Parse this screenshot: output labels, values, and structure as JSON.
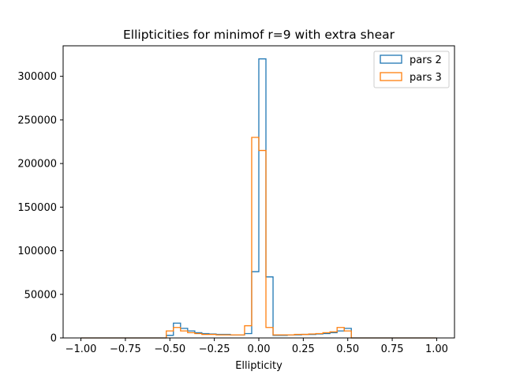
{
  "chart_data": {
    "type": "histogram-step",
    "title": "Ellipticities for minimof r=9 with extra shear",
    "xlabel": "Ellipticity",
    "ylabel": "",
    "xlim": [
      -1.1,
      1.1
    ],
    "ylim": [
      0,
      335000
    ],
    "xticks": [
      -1.0,
      -0.75,
      -0.5,
      -0.25,
      0.0,
      0.25,
      0.5,
      0.75,
      1.0
    ],
    "xtick_labels": [
      "−1.00",
      "−0.75",
      "−0.50",
      "−0.25",
      "0.00",
      "0.25",
      "0.50",
      "0.75",
      "1.00"
    ],
    "yticks": [
      0,
      50000,
      100000,
      150000,
      200000,
      250000,
      300000
    ],
    "ytick_labels": [
      "0",
      "50000",
      "100000",
      "150000",
      "200000",
      "250000",
      "300000"
    ],
    "bin_edges": [
      -1.0,
      -0.96,
      -0.92,
      -0.88,
      -0.84,
      -0.8,
      -0.76,
      -0.72,
      -0.68,
      -0.64,
      -0.6,
      -0.56,
      -0.52,
      -0.48,
      -0.44,
      -0.4,
      -0.36,
      -0.32,
      -0.28,
      -0.24,
      -0.2,
      -0.16,
      -0.12,
      -0.08,
      -0.04,
      0.0,
      0.04,
      0.08,
      0.12,
      0.16,
      0.2,
      0.24,
      0.28,
      0.32,
      0.36,
      0.4,
      0.44,
      0.48,
      0.52,
      0.56,
      0.6,
      0.64,
      0.68,
      0.72,
      0.76,
      0.8,
      0.84,
      0.88,
      0.92,
      0.96,
      1.0
    ],
    "series": [
      {
        "name": "pars 2",
        "color": "#1f77b4",
        "values": [
          0,
          0,
          0,
          0,
          0,
          0,
          0,
          0,
          0,
          0,
          0,
          0,
          3000,
          17000,
          11000,
          8000,
          6000,
          5000,
          4500,
          4000,
          4000,
          3500,
          3500,
          5000,
          76000,
          320000,
          70000,
          3000,
          3000,
          3500,
          3500,
          4000,
          4000,
          4500,
          5000,
          6000,
          8000,
          11000,
          0,
          0,
          0,
          0,
          0,
          0,
          0,
          0,
          0,
          0,
          0,
          0
        ]
      },
      {
        "name": "pars 3",
        "color": "#ff7f0e",
        "values": [
          0,
          0,
          0,
          0,
          0,
          0,
          0,
          0,
          0,
          0,
          0,
          0,
          8000,
          12000,
          8000,
          6000,
          5000,
          4000,
          4000,
          3500,
          3500,
          3500,
          3500,
          14000,
          230000,
          215000,
          12000,
          3500,
          3500,
          3500,
          4000,
          4000,
          4500,
          5000,
          6000,
          7000,
          12000,
          8000,
          0,
          0,
          0,
          0,
          0,
          0,
          0,
          0,
          0,
          0,
          0,
          0
        ]
      }
    ],
    "legend": {
      "position": "top-right"
    },
    "grid": false
  }
}
